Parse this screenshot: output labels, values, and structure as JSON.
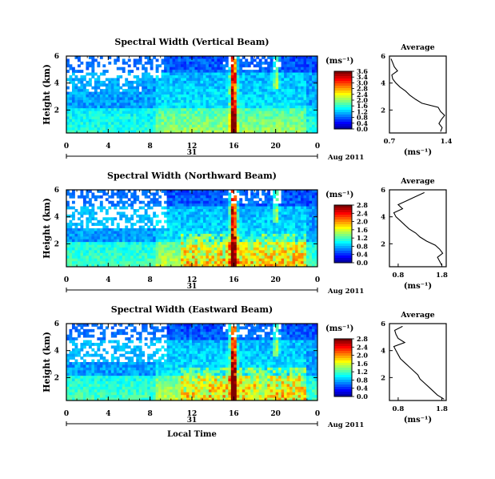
{
  "chart_data": [
    {
      "type": "heatmap",
      "title": "Spectral Width (Vertical Beam)",
      "ylabel": "Height (km)",
      "xlabel": "",
      "x_ticks": [
        "0",
        "4",
        "8",
        "12",
        "16",
        "20",
        "0"
      ],
      "y_ticks": [
        "2",
        "4",
        "6"
      ],
      "day_label": "31",
      "date_label": "Aug 2011",
      "colorbar": {
        "unit": "(ms⁻¹)",
        "ticks": [
          "3.6",
          "3.4",
          "3.0",
          "2.8",
          "2.4",
          "2.0",
          "1.6",
          "1.2",
          "0.8",
          "0.4",
          "0.0"
        ],
        "range": [
          0.0,
          3.6
        ]
      },
      "average": {
        "title": "Average",
        "xlabel": "(ms⁻¹)",
        "x_ticks": [
          "0.7",
          "1.4"
        ],
        "y_ticks": [
          "2",
          "4",
          "6"
        ],
        "xlim": [
          0.7,
          1.4
        ],
        "ylim": [
          0.3,
          6
        ],
        "heights": [
          0.4,
          0.7,
          1.0,
          1.3,
          1.6,
          1.9,
          2.2,
          2.5,
          2.8,
          3.1,
          3.4,
          3.7,
          4.0,
          4.3,
          4.6,
          4.9,
          5.2,
          5.5,
          5.8
        ],
        "values": [
          1.33,
          1.35,
          1.31,
          1.34,
          1.38,
          1.33,
          1.3,
          1.1,
          1.02,
          0.95,
          0.9,
          0.83,
          0.78,
          0.74,
          0.73,
          0.8,
          0.76,
          0.74,
          0.72
        ]
      }
    },
    {
      "type": "heatmap",
      "title": "Spectral Width (Northward Beam)",
      "ylabel": "Height (km)",
      "xlabel": "",
      "x_ticks": [
        "0",
        "4",
        "8",
        "12",
        "16",
        "20",
        "0"
      ],
      "y_ticks": [
        "2",
        "4",
        "6"
      ],
      "day_label": "31",
      "date_label": "Aug 2011",
      "colorbar": {
        "unit": "(ms⁻¹)",
        "ticks": [
          "2.8",
          "2.4",
          "2.0",
          "1.6",
          "1.2",
          "0.8",
          "0.4",
          "0.0"
        ],
        "range": [
          0.0,
          2.8
        ]
      },
      "average": {
        "title": "Average",
        "xlabel": "(ms⁻¹)",
        "x_ticks": [
          "0.8",
          "1.8"
        ],
        "y_ticks": [
          "2",
          "4",
          "6"
        ],
        "xlim": [
          0.6,
          1.9
        ],
        "ylim": [
          0.3,
          6
        ],
        "heights": [
          0.4,
          0.7,
          1.0,
          1.3,
          1.6,
          1.9,
          2.2,
          2.5,
          2.8,
          3.1,
          3.4,
          3.7,
          4.0,
          4.3,
          4.6,
          4.9,
          5.2,
          5.5,
          5.8
        ],
        "values": [
          1.8,
          1.75,
          1.7,
          1.82,
          1.75,
          1.65,
          1.45,
          1.3,
          1.2,
          1.05,
          0.95,
          0.85,
          0.75,
          0.7,
          0.9,
          0.8,
          1.0,
          1.2,
          1.4
        ]
      }
    },
    {
      "type": "heatmap",
      "title": "Spectral Width (Eastward Beam)",
      "ylabel": "Height (km)",
      "xlabel": "Local Time",
      "x_ticks": [
        "0",
        "4",
        "8",
        "12",
        "16",
        "20",
        "0"
      ],
      "y_ticks": [
        "2",
        "4",
        "6"
      ],
      "day_label": "31",
      "date_label": "Aug 2011",
      "colorbar": {
        "unit": "(ms⁻¹)",
        "ticks": [
          "2.8",
          "2.4",
          "2.0",
          "1.6",
          "1.2",
          "0.8",
          "0.4",
          "0.0"
        ],
        "range": [
          0.0,
          2.8
        ]
      },
      "average": {
        "title": "Average",
        "xlabel": "(ms⁻¹)",
        "x_ticks": [
          "0.8",
          "1.8"
        ],
        "y_ticks": [
          "2",
          "4",
          "6"
        ],
        "xlim": [
          0.6,
          1.9
        ],
        "ylim": [
          0.3,
          6
        ],
        "heights": [
          0.4,
          0.7,
          1.0,
          1.3,
          1.6,
          1.9,
          2.2,
          2.5,
          2.8,
          3.1,
          3.4,
          3.7,
          4.0,
          4.3,
          4.6,
          4.9,
          5.2,
          5.5,
          5.8
        ],
        "values": [
          1.85,
          1.7,
          1.6,
          1.5,
          1.4,
          1.3,
          1.25,
          1.15,
          1.05,
          0.95,
          0.85,
          0.8,
          0.75,
          0.7,
          0.95,
          0.8,
          0.75,
          0.72,
          0.9
        ]
      }
    }
  ]
}
